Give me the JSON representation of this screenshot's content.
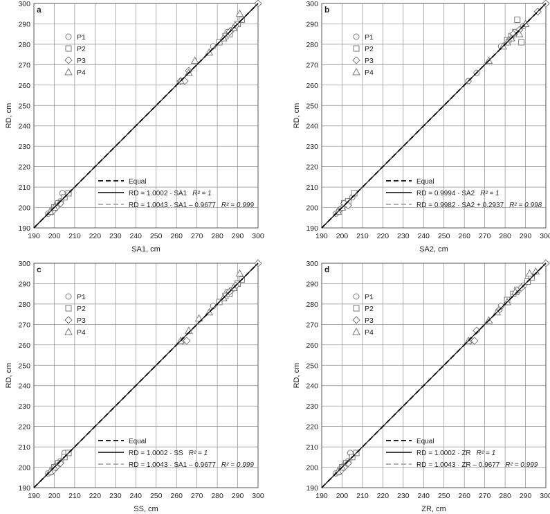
{
  "chart_data": [
    {
      "type": "scatter",
      "panel_label": "a",
      "xlabel": "SA1, cm",
      "ylabel": "RD, cm",
      "xlim": [
        190,
        300
      ],
      "ylim": [
        190,
        300
      ],
      "ticks": [
        190,
        200,
        210,
        220,
        230,
        240,
        250,
        260,
        270,
        280,
        290,
        300
      ],
      "grid": true,
      "series": [
        {
          "name": "P1",
          "marker": "circle",
          "x": [
            197,
            199,
            201,
            203,
            204,
            278,
            281,
            285,
            287
          ],
          "y": [
            197,
            199,
            201,
            203,
            207,
            279,
            281,
            286,
            287
          ]
        },
        {
          "name": "P2",
          "marker": "square",
          "x": [
            200,
            202,
            205,
            207,
            281,
            284,
            286,
            290,
            292
          ],
          "y": [
            200,
            202,
            205,
            207,
            281,
            284,
            285,
            290,
            292
          ]
        },
        {
          "name": "P3",
          "marker": "diamond",
          "x": [
            199,
            201,
            203,
            262,
            264,
            266,
            286,
            289,
            300
          ],
          "y": [
            198,
            200,
            202,
            262,
            262,
            267,
            286,
            289,
            300
          ]
        },
        {
          "name": "P4",
          "marker": "triangle",
          "x": [
            198,
            200,
            262,
            266,
            269,
            276,
            283,
            288,
            291
          ],
          "y": [
            198,
            200,
            262,
            266,
            272,
            276,
            283,
            288,
            295
          ]
        }
      ],
      "legend_items": [
        "P1",
        "P2",
        "P3",
        "P4"
      ],
      "lines": [
        {
          "label": "Equal",
          "style": "dashed"
        },
        {
          "label": "RD = 1.0002 · SA1",
          "r2": "R² = 1",
          "style": "solid"
        },
        {
          "label": "RD = 1.0043 · SA1 – 0.9677",
          "r2": "R² = 0.999",
          "style": "gray-dashed"
        }
      ]
    },
    {
      "type": "scatter",
      "panel_label": "b",
      "xlabel": "SA2, cm",
      "ylabel": "RD, cm",
      "xlim": [
        190,
        300
      ],
      "ylim": [
        190,
        300
      ],
      "ticks": [
        190,
        200,
        210,
        220,
        230,
        240,
        250,
        260,
        270,
        280,
        290,
        300
      ],
      "grid": true,
      "series": [
        {
          "name": "P1",
          "marker": "circle",
          "x": [
            197,
            199,
            201,
            203,
            205,
            262,
            266,
            278,
            285,
            289
          ],
          "y": [
            197,
            199,
            201,
            203,
            205,
            262,
            266,
            279,
            286,
            289
          ]
        },
        {
          "name": "P2",
          "marker": "square",
          "x": [
            201,
            203,
            206,
            281,
            283,
            285,
            286,
            288
          ],
          "y": [
            202,
            203,
            207,
            282,
            284,
            286,
            292,
            281
          ]
        },
        {
          "name": "P3",
          "marker": "diamond",
          "x": [
            199,
            201,
            203,
            282,
            284,
            287,
            296,
            300
          ],
          "y": [
            199,
            202,
            201,
            282,
            285,
            287,
            296,
            300
          ]
        },
        {
          "name": "P4",
          "marker": "triangle",
          "x": [
            198,
            200,
            272,
            279,
            281,
            283,
            287,
            290
          ],
          "y": [
            198,
            200,
            272,
            279,
            281,
            283,
            285,
            290
          ]
        }
      ],
      "legend_items": [
        "P1",
        "P2",
        "P3",
        "P4"
      ],
      "lines": [
        {
          "label": "Equal",
          "style": "dashed"
        },
        {
          "label": "RD = 0.9994 · SA2",
          "r2": "R² = 1",
          "style": "solid"
        },
        {
          "label": "RD = 0.9982 · SA2 + 0.2937",
          "r2": "R² = 0.998",
          "style": "gray-dashed"
        }
      ]
    },
    {
      "type": "scatter",
      "panel_label": "c",
      "xlabel": "SS, cm",
      "ylabel": "RD, cm",
      "xlim": [
        190,
        300
      ],
      "ylim": [
        190,
        300
      ],
      "ticks": [
        190,
        200,
        210,
        220,
        230,
        240,
        250,
        260,
        270,
        280,
        290,
        300
      ],
      "grid": true,
      "series": [
        {
          "name": "P1",
          "marker": "circle",
          "x": [
            197,
            199,
            201,
            203,
            205,
            278,
            281,
            285,
            287
          ],
          "y": [
            197,
            199,
            201,
            203,
            207,
            279,
            281,
            286,
            287
          ]
        },
        {
          "name": "P2",
          "marker": "square",
          "x": [
            200,
            202,
            205,
            207,
            281,
            284,
            286,
            290,
            292
          ],
          "y": [
            200,
            202,
            205,
            207,
            281,
            284,
            285,
            290,
            292
          ]
        },
        {
          "name": "P3",
          "marker": "diamond",
          "x": [
            199,
            201,
            203,
            263,
            265,
            286,
            289,
            300
          ],
          "y": [
            198,
            200,
            202,
            262,
            262,
            286,
            289,
            300
          ]
        },
        {
          "name": "P4",
          "marker": "triangle",
          "x": [
            198,
            200,
            262,
            266,
            271,
            276,
            283,
            288,
            291
          ],
          "y": [
            198,
            200,
            262,
            267,
            273,
            276,
            283,
            288,
            295
          ]
        }
      ],
      "legend_items": [
        "P1",
        "P2",
        "P3",
        "P4"
      ],
      "lines": [
        {
          "label": "Equal",
          "style": "dashed"
        },
        {
          "label": "RD = 1.0002 · SS",
          "r2": "R² = 1",
          "style": "solid"
        },
        {
          "label": "RD = 1.0043 · SA1 – 0.9677",
          "r2": "R² = 0.999",
          "style": "gray-dashed"
        }
      ]
    },
    {
      "type": "scatter",
      "panel_label": "d",
      "xlabel": "ZR, cm",
      "ylabel": "RD, cm",
      "xlim": [
        190,
        300
      ],
      "ylim": [
        190,
        300
      ],
      "ticks": [
        190,
        200,
        210,
        220,
        230,
        240,
        250,
        260,
        270,
        280,
        290,
        300
      ],
      "grid": true,
      "series": [
        {
          "name": "P1",
          "marker": "circle",
          "x": [
            197,
            199,
            201,
            203,
            204,
            278,
            281,
            286,
            289
          ],
          "y": [
            197,
            199,
            201,
            203,
            207,
            279,
            281,
            286,
            289
          ]
        },
        {
          "name": "P2",
          "marker": "square",
          "x": [
            200,
            202,
            205,
            207,
            281,
            284,
            286,
            291,
            293
          ],
          "y": [
            200,
            202,
            205,
            207,
            282,
            285,
            287,
            291,
            293
          ]
        },
        {
          "name": "P3",
          "marker": "diamond",
          "x": [
            199,
            201,
            203,
            263,
            265,
            266,
            277,
            288,
            300
          ],
          "y": [
            198,
            200,
            202,
            262,
            262,
            267,
            277,
            288,
            300
          ]
        },
        {
          "name": "P4",
          "marker": "triangle",
          "x": [
            198,
            200,
            262,
            272,
            276,
            281,
            285,
            292,
            295
          ],
          "y": [
            198,
            200,
            262,
            272,
            276,
            281,
            286,
            295,
            296
          ]
        }
      ],
      "legend_items": [
        "P1",
        "P2",
        "P3",
        "P4"
      ],
      "lines": [
        {
          "label": "Equal",
          "style": "dashed"
        },
        {
          "label": "RD = 1.0002 · ZR",
          "r2": "R² = 1",
          "style": "solid"
        },
        {
          "label": "RD = 1.0043 · ZR – 0.9677",
          "r2": "R² = 0.999",
          "style": "gray-dashed"
        }
      ]
    }
  ]
}
